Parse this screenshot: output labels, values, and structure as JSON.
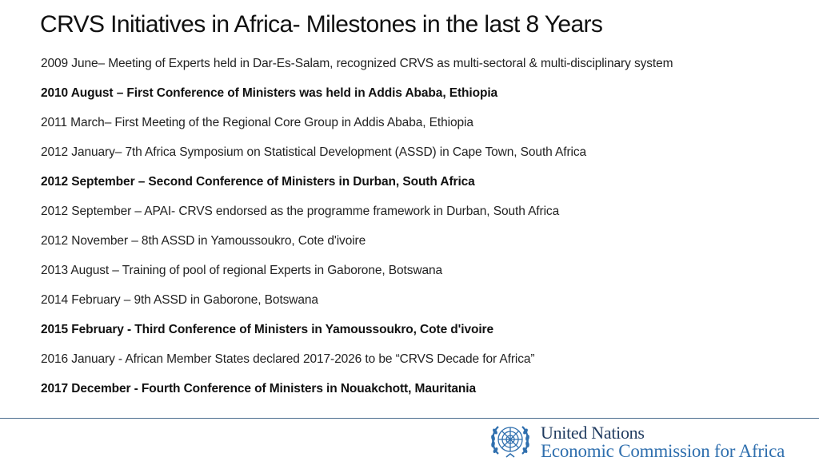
{
  "slide": {
    "title": "CRVS Initiatives in Africa- Milestones in the last 8 Years",
    "items": [
      {
        "text": "2009 June– Meeting of Experts held in Dar-Es-Salam, recognized CRVS as multi-sectoral & multi-disciplinary system",
        "bold": false
      },
      {
        "text": "2010 August – First Conference of Ministers was held in Addis Ababa, Ethiopia",
        "bold": true
      },
      {
        "text": "2011 March– First Meeting of the Regional Core Group in Addis Ababa, Ethiopia",
        "bold": false
      },
      {
        "text": "2012 January– 7th Africa Symposium on Statistical Development (ASSD) in Cape Town, South Africa",
        "bold": false
      },
      {
        "text": "2012 September – Second Conference of Ministers in Durban, South Africa",
        "bold": true
      },
      {
        "text": "2012 September – APAI- CRVS endorsed as the programme framework in Durban, South Africa",
        "bold": false
      },
      {
        "text": "2012 November – 8th ASSD in Yamoussoukro, Cote d'ivoire",
        "bold": false
      },
      {
        "text": "2013 August – Training of pool of regional Experts in Gaborone, Botswana",
        "bold": false
      },
      {
        "text": "2014 February – 9th ASSD in Gaborone, Botswana",
        "bold": false
      },
      {
        "text": "2015 February -  Third Conference of Ministers in Yamoussoukro, Cote d'ivoire",
        "bold": true
      },
      {
        "text": "2016 January - African Member States declared 2017-2026 to be “CRVS Decade for Africa”",
        "bold": false
      },
      {
        "text": "2017 December - Fourth Conference of Ministers in Nouakchott, Mauritania",
        "bold": true
      }
    ]
  },
  "footer": {
    "org_line1": "United Nations",
    "org_line2": "Economic Commission for Africa",
    "logo_icon": "un-emblem-icon",
    "colors": {
      "line1": "#1f3a5f",
      "line2": "#2f6fae",
      "divider": "#4a6d8f"
    }
  }
}
